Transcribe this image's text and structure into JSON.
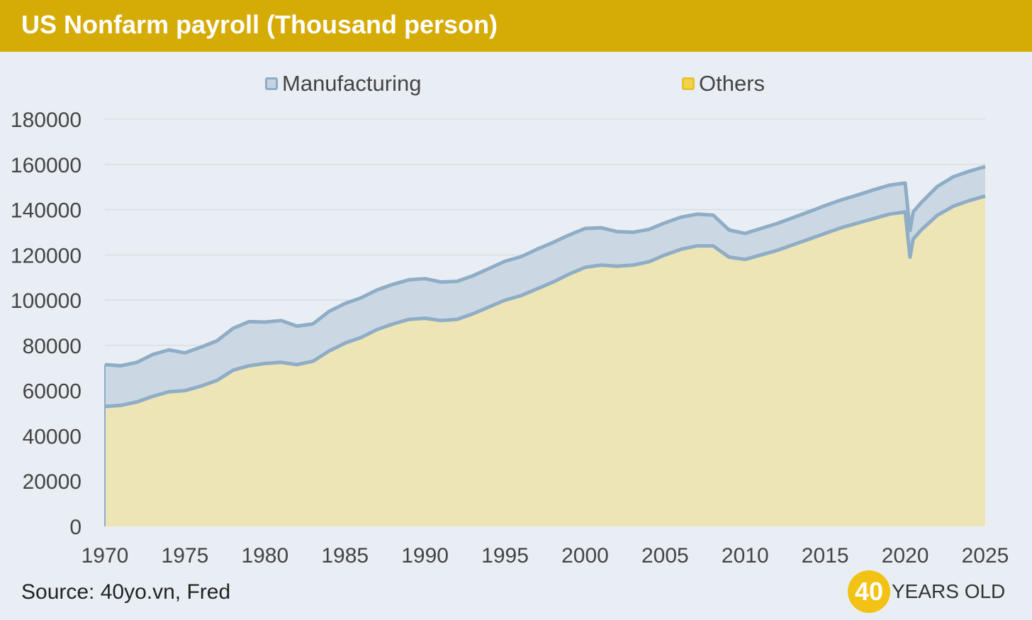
{
  "header": {
    "title": "US Nonfarm payroll (Thousand person)"
  },
  "legend": [
    {
      "label": "Manufacturing",
      "fill": "#c6d4e2",
      "stroke": "#8fadc6"
    },
    {
      "label": "Others",
      "fill": "#f2d44a",
      "stroke": "#e8c230"
    }
  ],
  "colors": {
    "title_bar": "#d5ab05",
    "background": "#e9eef4",
    "manufacturing_area": "#cbd8e4",
    "others_area": "#ede5b6",
    "line": "#8fadc6",
    "grid": "#d8dde2"
  },
  "chart_data": {
    "type": "area",
    "stacked": true,
    "title": "US Nonfarm payroll (Thousand person)",
    "xlim": [
      1970,
      2025
    ],
    "ylim": [
      0,
      180000
    ],
    "x_ticks": [
      "1970",
      "1975",
      "1980",
      "1985",
      "1990",
      "1995",
      "2000",
      "2005",
      "2010",
      "2015",
      "2020",
      "2025"
    ],
    "y_ticks": [
      "0",
      "20000",
      "40000",
      "60000",
      "80000",
      "100000",
      "120000",
      "140000",
      "160000",
      "180000"
    ],
    "grid": true,
    "legend_position": "top",
    "x": [
      1970,
      1971,
      1972,
      1973,
      1974,
      1975,
      1976,
      1977,
      1978,
      1979,
      1980,
      1981,
      1982,
      1983,
      1984,
      1985,
      1986,
      1987,
      1988,
      1989,
      1990,
      1991,
      1992,
      1993,
      1994,
      1995,
      1996,
      1997,
      1998,
      1999,
      2000,
      2001,
      2002,
      2003,
      2004,
      2005,
      2006,
      2007,
      2008,
      2009,
      2010,
      2011,
      2012,
      2013,
      2014,
      2015,
      2016,
      2017,
      2018,
      2019,
      2020,
      2020.3,
      2020.5,
      2021,
      2022,
      2023,
      2024,
      2025
    ],
    "series": [
      {
        "name": "Others",
        "values": [
          53000,
          53500,
          55000,
          57500,
          59500,
          60000,
          62000,
          64500,
          69000,
          71000,
          72000,
          72500,
          71500,
          73000,
          77500,
          81000,
          83500,
          87000,
          89500,
          91500,
          92000,
          91000,
          91500,
          94000,
          97000,
          100000,
          102000,
          105000,
          108000,
          111500,
          114500,
          115500,
          115000,
          115500,
          117000,
          120000,
          122500,
          124000,
          124000,
          119000,
          118000,
          120000,
          122000,
          124500,
          127000,
          129500,
          132000,
          134000,
          136000,
          138000,
          139000,
          119000,
          127000,
          131000,
          137500,
          141500,
          144000,
          146000
        ]
      },
      {
        "name": "Manufacturing",
        "values": [
          18500,
          17500,
          17500,
          18500,
          18500,
          16700,
          17200,
          17500,
          18500,
          19500,
          18300,
          18500,
          17000,
          16500,
          17500,
          17500,
          17500,
          17500,
          17500,
          17500,
          17500,
          17000,
          16800,
          16800,
          17000,
          17200,
          17200,
          17500,
          17500,
          17300,
          17200,
          16500,
          15300,
          14500,
          14300,
          14200,
          14200,
          14000,
          13600,
          12000,
          11500,
          11700,
          11900,
          12000,
          12100,
          12300,
          12300,
          12400,
          12700,
          12800,
          12800,
          11800,
          12000,
          12100,
          12700,
          13000,
          13000,
          13000
        ]
      }
    ],
    "totals": [
      71500,
      71000,
      72500,
      76000,
      78000,
      76700,
      79200,
      82000,
      87500,
      90500,
      90300,
      91000,
      88500,
      89500,
      95000,
      98500,
      101000,
      104500,
      107000,
      109000,
      109500,
      108000,
      108300,
      110800,
      114000,
      117200,
      119200,
      122500,
      125500,
      128800,
      131700,
      132000,
      130300,
      130000,
      131300,
      134200,
      136700,
      138000,
      137600,
      131000,
      129500,
      131700,
      133900,
      136500,
      139100,
      141800,
      144300,
      146400,
      148700,
      150800,
      151800,
      130800,
      139000,
      143100,
      150200,
      154500,
      157000,
      159000
    ],
    "xlabel": "",
    "ylabel": ""
  },
  "footer": {
    "source": "Source: 40yo.vn, Fred",
    "logo_number": "40",
    "logo_text": "YEARS OLD"
  }
}
